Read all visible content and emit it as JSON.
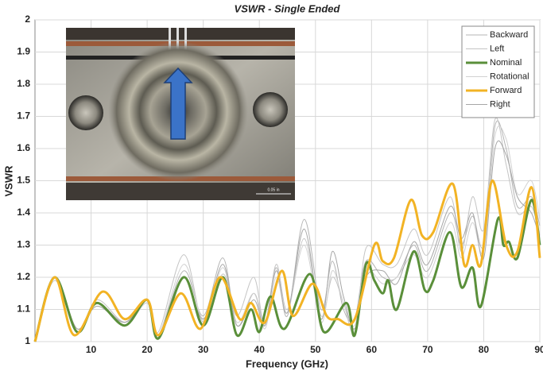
{
  "chart_data": {
    "type": "line",
    "title": "VSWR - Single Ended",
    "xlabel": "Frequency (GHz)",
    "ylabel": "VSWR",
    "xlim": [
      0,
      90
    ],
    "xticks": [
      10,
      20,
      30,
      40,
      50,
      60,
      70,
      80,
      90
    ],
    "ylim": [
      1,
      2
    ],
    "yticks": [
      1,
      1.1,
      1.2,
      1.3,
      1.4,
      1.5,
      1.6,
      1.7,
      1.8,
      1.9,
      2
    ],
    "grid": true,
    "legend": "upper right",
    "series": [
      {
        "name": "Backward",
        "color": "#b4b4b4",
        "width": 1,
        "x": [
          0,
          3.5,
          7.5,
          11,
          16,
          20,
          22,
          26.5,
          30,
          33.5,
          36,
          39,
          41,
          43,
          45,
          48,
          51,
          53,
          55,
          57,
          59,
          62,
          64.5,
          67.5,
          70,
          74,
          76,
          78,
          80,
          82,
          84,
          86,
          88.5,
          90
        ],
        "values": [
          1,
          1.2,
          1.04,
          1.12,
          1.06,
          1.13,
          1.02,
          1.22,
          1.08,
          1.26,
          1.05,
          1.15,
          1.06,
          1.23,
          1.08,
          1.38,
          1.1,
          1.25,
          1.1,
          1.07,
          1.25,
          1.2,
          1.2,
          1.3,
          1.22,
          1.4,
          1.3,
          1.39,
          1.3,
          1.67,
          1.6,
          1.42,
          1.45,
          1.36
        ]
      },
      {
        "name": "Left",
        "color": "#c4c4c4",
        "width": 1,
        "x": [
          0,
          3.5,
          7.5,
          11,
          16,
          20,
          22,
          26.5,
          30,
          33.5,
          36,
          39,
          41,
          43,
          45,
          48,
          51,
          53,
          55,
          57,
          59,
          62,
          64.5,
          67.5,
          70,
          74,
          76,
          78,
          80,
          82,
          84,
          86,
          88.5,
          90
        ],
        "values": [
          1,
          1.19,
          1.03,
          1.13,
          1.06,
          1.12,
          1.03,
          1.27,
          1.06,
          1.21,
          1.08,
          1.2,
          1.05,
          1.24,
          1.1,
          1.32,
          1.08,
          1.2,
          1.12,
          1.03,
          1.29,
          1.24,
          1.24,
          1.35,
          1.27,
          1.45,
          1.28,
          1.45,
          1.35,
          1.69,
          1.55,
          1.4,
          1.42,
          1.33
        ]
      },
      {
        "name": "Nominal",
        "color": "#5a8f3a",
        "width": 3,
        "x": [
          0,
          3.5,
          7.5,
          11,
          16,
          20,
          22,
          26.5,
          30,
          33.5,
          36,
          38.5,
          40,
          42,
          44.5,
          49,
          51.5,
          55.5,
          57,
          59,
          60.5,
          62,
          63,
          64.5,
          67.5,
          69.5,
          71,
          74,
          76,
          78,
          79.5,
          82.5,
          83.5,
          84.5,
          86,
          88.5,
          90
        ],
        "values": [
          1,
          1.2,
          1.03,
          1.12,
          1.05,
          1.13,
          1.01,
          1.2,
          1.05,
          1.2,
          1.02,
          1.1,
          1.03,
          1.14,
          1.04,
          1.21,
          1.03,
          1.12,
          1.02,
          1.24,
          1.19,
          1.15,
          1.19,
          1.1,
          1.28,
          1.16,
          1.19,
          1.34,
          1.17,
          1.23,
          1.11,
          1.38,
          1.3,
          1.31,
          1.26,
          1.44,
          1.3
        ]
      },
      {
        "name": "Rotational",
        "color": "#d2d2d2",
        "width": 1,
        "x": [
          0,
          3.5,
          7.5,
          11,
          16,
          20,
          22,
          26.5,
          30,
          33.5,
          36,
          39,
          41,
          43,
          45,
          48,
          51,
          53,
          55,
          57,
          59,
          62,
          64.5,
          67.5,
          70,
          74,
          76,
          78,
          80,
          82,
          84,
          86,
          88.5,
          90
        ],
        "values": [
          1,
          1.2,
          1.03,
          1.12,
          1.05,
          1.12,
          1.02,
          1.24,
          1.07,
          1.23,
          1.06,
          1.15,
          1.04,
          1.2,
          1.09,
          1.3,
          1.06,
          1.22,
          1.12,
          1.05,
          1.22,
          1.18,
          1.2,
          1.27,
          1.2,
          1.37,
          1.26,
          1.37,
          1.28,
          1.64,
          1.63,
          1.46,
          1.5,
          1.38
        ]
      },
      {
        "name": "Forward",
        "color": "#f2b324",
        "width": 3,
        "x": [
          0,
          3.5,
          7,
          12,
          16,
          20,
          22,
          26,
          29.5,
          33,
          36.5,
          38.5,
          41,
          44,
          46,
          49.5,
          52,
          54,
          57,
          60.5,
          62,
          64,
          67,
          69,
          71,
          74.5,
          76.5,
          78,
          79.5,
          81.5,
          84,
          86,
          88.5,
          90
        ],
        "values": [
          1,
          1.2,
          1.02,
          1.155,
          1.07,
          1.13,
          1.02,
          1.15,
          1.04,
          1.2,
          1.07,
          1.12,
          1.06,
          1.22,
          1.08,
          1.18,
          1.08,
          1.07,
          1.07,
          1.3,
          1.25,
          1.26,
          1.44,
          1.33,
          1.34,
          1.49,
          1.24,
          1.3,
          1.24,
          1.5,
          1.3,
          1.28,
          1.48,
          1.26
        ]
      },
      {
        "name": "Right",
        "color": "#a6a6a6",
        "width": 1,
        "x": [
          0,
          3.5,
          7.5,
          11,
          16,
          20,
          22,
          26.5,
          30,
          33.5,
          36,
          39,
          41,
          43,
          45,
          48,
          51,
          53,
          55,
          57,
          59,
          62,
          64.5,
          67.5,
          70,
          74,
          76,
          78,
          80,
          82,
          84,
          86,
          88.5,
          90
        ],
        "values": [
          1,
          1.2,
          1.04,
          1.11,
          1.06,
          1.13,
          1.02,
          1.2,
          1.07,
          1.24,
          1.05,
          1.13,
          1.05,
          1.22,
          1.09,
          1.35,
          1.07,
          1.28,
          1.14,
          1.04,
          1.2,
          1.22,
          1.18,
          1.31,
          1.24,
          1.42,
          1.32,
          1.4,
          1.26,
          1.6,
          1.58,
          1.45,
          1.4,
          1.32
        ]
      }
    ]
  },
  "inset": {
    "scale_label": "0.05 in"
  }
}
